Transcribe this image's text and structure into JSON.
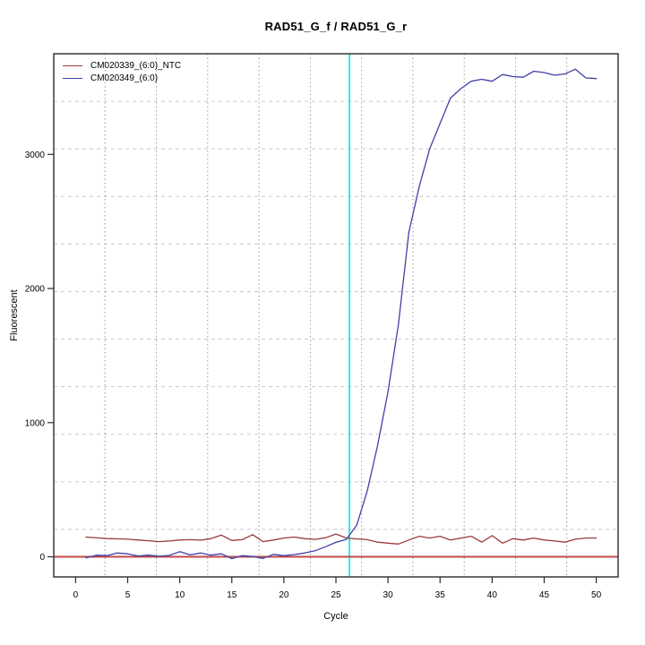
{
  "chart_data": {
    "type": "line",
    "title": "RAD51_G_f / RAD51_G_r",
    "xlabel": "Cycle",
    "ylabel": "Fluorescent",
    "x_tick_labels": [
      "0",
      "5",
      "10",
      "15",
      "20",
      "25",
      "30",
      "35",
      "40",
      "45",
      "50"
    ],
    "x_tick_values": [
      0,
      5,
      10,
      15,
      20,
      25,
      30,
      35,
      40,
      45,
      50
    ],
    "y_tick_labels": [
      "0",
      "1000",
      "2000",
      "3000"
    ],
    "y_tick_values": [
      0,
      1000,
      2000,
      3000
    ],
    "xlim": [
      -2.1,
      52.1
    ],
    "ylim": [
      -150,
      3750
    ],
    "grid": {
      "v_lines": 10,
      "h_lines": 10,
      "v_style": "dotted",
      "h_style": "dashed",
      "v_color": "#9c9c9c",
      "h_color": "#c9c9c9"
    },
    "legend_position": "top-left",
    "x": [
      1,
      2,
      3,
      4,
      5,
      6,
      7,
      8,
      9,
      10,
      11,
      12,
      13,
      14,
      15,
      16,
      17,
      18,
      19,
      20,
      21,
      22,
      23,
      24,
      25,
      26,
      27,
      28,
      29,
      30,
      31,
      32,
      33,
      34,
      35,
      36,
      37,
      38,
      39,
      40,
      41,
      42,
      43,
      44,
      45,
      46,
      47,
      48,
      49,
      50
    ],
    "series": [
      {
        "name": "CM020339_(6:0)_NTC",
        "color": "#9a3a3a",
        "values": [
          147,
          141,
          136,
          134,
          131,
          125,
          120,
          113,
          118,
          125,
          128,
          124,
          135,
          162,
          122,
          128,
          165,
          113,
          125,
          140,
          147,
          135,
          130,
          142,
          170,
          140,
          133,
          128,
          109,
          102,
          95,
          125,
          153,
          140,
          153,
          125,
          140,
          153,
          109,
          158,
          102,
          135,
          125,
          140,
          125,
          118,
          109,
          131,
          140,
          140
        ]
      },
      {
        "name": "CM020349_(6:0)",
        "color": "#4040a8",
        "values": [
          -8,
          12,
          8,
          28,
          22,
          6,
          12,
          4,
          10,
          38,
          14,
          28,
          12,
          22,
          -14,
          8,
          2,
          -12,
          18,
          8,
          16,
          28,
          45,
          75,
          108,
          130,
          235,
          490,
          830,
          1230,
          1730,
          2420,
          2760,
          3040,
          3230,
          3420,
          3490,
          3545,
          3560,
          3545,
          3595,
          3580,
          3575,
          3620,
          3610,
          3590,
          3600,
          3635,
          3570,
          3565
        ]
      }
    ],
    "annotations": {
      "threshold_line": {
        "axis": "y",
        "value": 0,
        "color": "#bf4a4a",
        "style": "solid"
      },
      "ct_line": {
        "axis": "x",
        "value": 26.3,
        "color": "#00e4ee",
        "style": "solid"
      }
    }
  }
}
